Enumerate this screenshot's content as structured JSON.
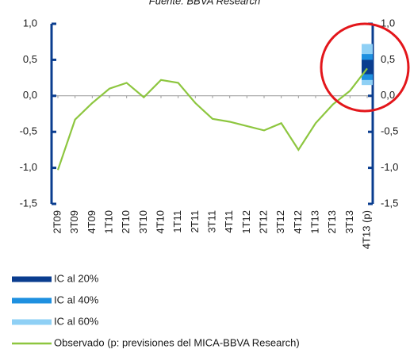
{
  "chart_data": {
    "type": "line",
    "title": "Fuente: BBVA Research",
    "categories": [
      "2T09",
      "3T09",
      "4T09",
      "1T10",
      "2T10",
      "3T10",
      "4T10",
      "1T11",
      "2T11",
      "3T11",
      "4T11",
      "1T12",
      "2T12",
      "3T12",
      "4T12",
      "1T13",
      "2T13",
      "3T13",
      "4T13 (p)"
    ],
    "series": [
      {
        "name": "Observado (p: previsiones del MICA-BBVA Research)",
        "color": "#8dc63f",
        "values": [
          -1.03,
          -0.33,
          -0.1,
          0.1,
          0.18,
          -0.02,
          0.22,
          0.18,
          -0.1,
          -0.32,
          -0.36,
          -0.42,
          -0.48,
          -0.38,
          -0.75,
          -0.38,
          -0.12,
          0.07,
          0.38
        ]
      }
    ],
    "intervals": [
      {
        "name": "IC al 60%",
        "color": "#8fd0f5",
        "low": 0.15,
        "high": 0.72
      },
      {
        "name": "IC al 40%",
        "color": "#1e90e0",
        "low": 0.22,
        "high": 0.58
      },
      {
        "name": "IC al 20%",
        "color": "#0a3d8f",
        "low": 0.3,
        "high": 0.5
      }
    ],
    "ylim": [
      -1.5,
      1.0
    ],
    "yticks": [
      {
        "value": 1.0,
        "label": "1,0"
      },
      {
        "value": 0.5,
        "label": "0,5"
      },
      {
        "value": 0,
        "label": "0,0"
      },
      {
        "value": -0.5,
        "label": "-0,5"
      },
      {
        "value": -1.0,
        "label": "-1,0"
      },
      {
        "value": -1.5,
        "label": "-1,5"
      }
    ],
    "y2lim": [
      -1.5,
      1.0
    ],
    "y2ticks": [
      {
        "value": 1.0,
        "label": "1,0"
      },
      {
        "value": 0.5,
        "label": "0,5"
      },
      {
        "value": 0,
        "label": "0,0"
      },
      {
        "value": -0.5,
        "label": "-0,5"
      },
      {
        "value": -1.0,
        "label": "-1,0"
      },
      {
        "value": -1.5,
        "label": "-1,5"
      }
    ],
    "axis_color": "#0a3d8f",
    "zero_line": true
  }
}
